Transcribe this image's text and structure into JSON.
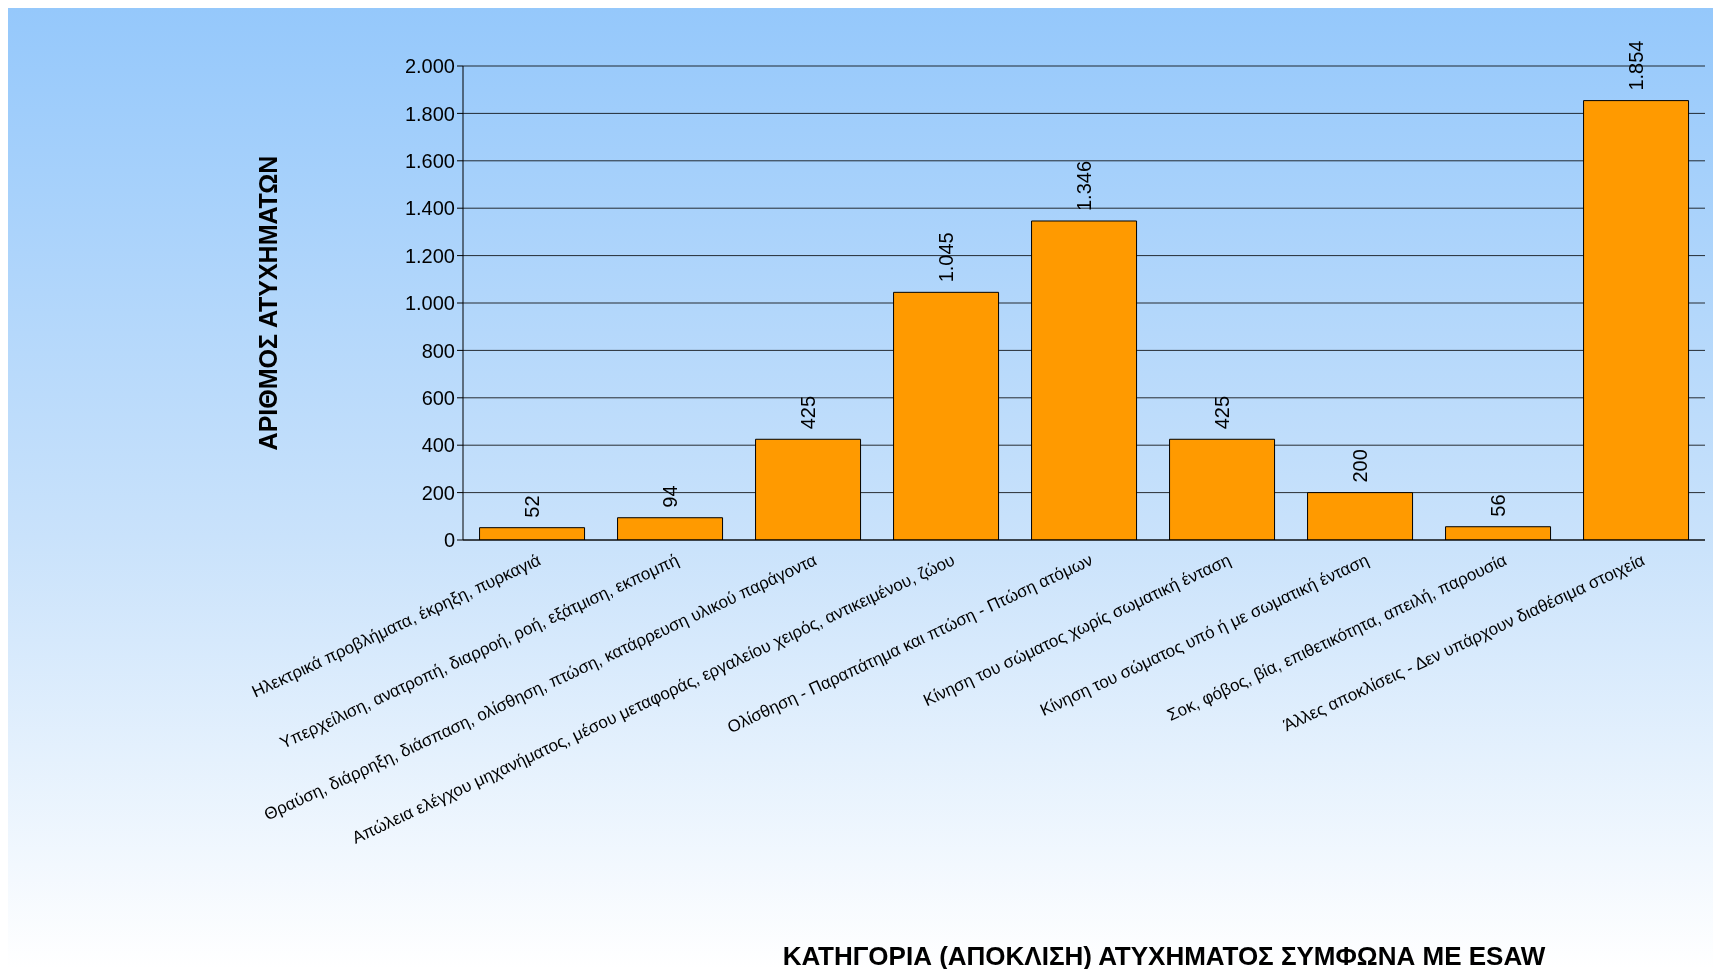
{
  "chart_data": {
    "type": "bar",
    "xlabel": "ΚΑΤΗΓΟΡΙΑ (ΑΠΟΚΛΙΣΗ) ΑΤΥΧΗΜΑΤΟΣ ΣΥΜΦΩΝΑ ΜΕ ESAW",
    "ylabel": "ΑΡΙΘΜΟΣ ΑΤΥΧΗΜΑΤΩΝ",
    "categories": [
      "Ηλεκτρικά προβλήματα, έκρηξη, πυρκαγιά",
      "Υπερχείλιση, ανατροπή, διαρροή, ροή, εξάτμιση, εκπομπή",
      "Θραύση, διάρρηξη, διάσπαση, ολίσθηση, πτώση, κατάρρευση υλικού παράγοντα",
      "Απώλεια ελέγχου μηχανήματος, μέσου μεταφοράς, εργαλείου χειρός, αντικειμένου, ζώου",
      "Ολίσθηση - Παραπάτημα και πτώση - Πτώση ατόμων",
      "Κίνηση του σώματος χωρίς σωματική ένταση",
      "Κίνηση του σώματος υπό ή με σωματική ένταση",
      "Σοκ, φόβος, βία, επιθετικότητα, απειλή, παρουσία",
      "Άλλες αποκλίσεις - Δεν υπάρχουν διαθέσιμα στοιχεία"
    ],
    "values": [
      52,
      94,
      425,
      1045,
      1346,
      425,
      200,
      56,
      1854
    ],
    "value_labels": [
      "52",
      "94",
      "425",
      "1.045",
      "1.346",
      "425",
      "200",
      "56",
      "1.854"
    ],
    "color": "#ff9a00",
    "ylim": [
      0,
      2000
    ],
    "yticks": [
      0,
      200,
      400,
      600,
      800,
      {
        "value": 1000,
        "label": "1.000"
      },
      {
        "value": 1200,
        "label": "1.200"
      },
      {
        "value": 1400,
        "label": "1.400"
      },
      {
        "value": 1600,
        "label": "1.600"
      },
      {
        "value": 1800,
        "label": "1.800"
      },
      {
        "value": 2000,
        "label": "2.000"
      }
    ],
    "grid": "y",
    "legend": false
  }
}
